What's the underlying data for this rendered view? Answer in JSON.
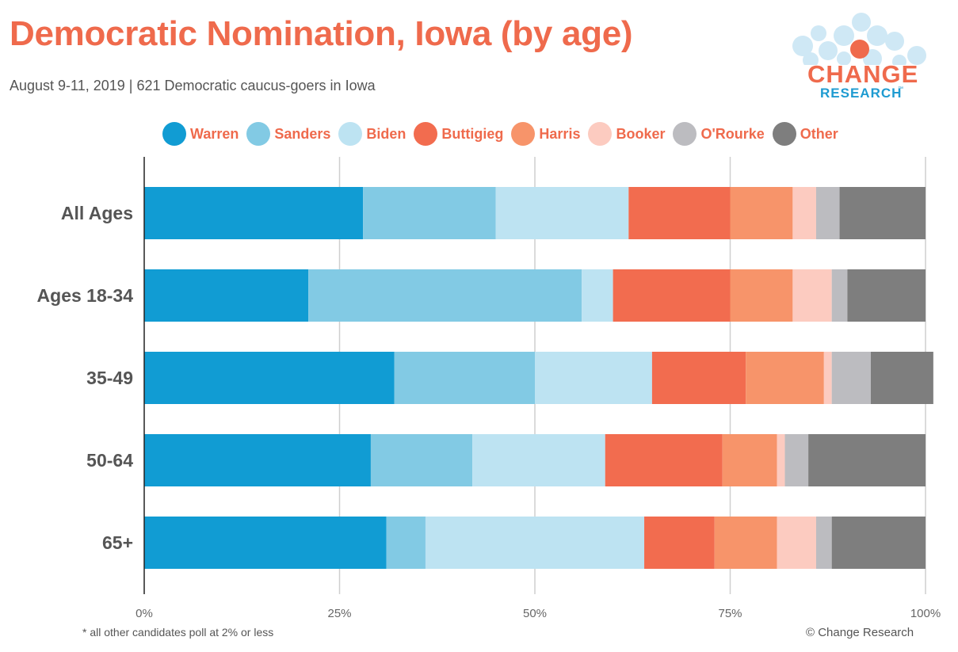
{
  "title": "Democratic Nomination, Iowa (by age)",
  "subtitle": "August 9-11, 2019  | 621 Democratic caucus-goers in Iowa",
  "logo": {
    "line1": "CHANGE",
    "line2": "RESEARCH",
    "tm": "™"
  },
  "footnote": "* all other candidates poll at 2% or less",
  "copyright": "© Change Research",
  "chart_data": {
    "type": "bar",
    "orientation": "horizontal",
    "stacked": true,
    "categories": [
      "All Ages",
      "Ages 18-34",
      "35-49",
      "50-64",
      "65+"
    ],
    "xlim": [
      0,
      100
    ],
    "xticks": [
      "0%",
      "25%",
      "50%",
      "75%",
      "100%"
    ],
    "grid": true,
    "legend_position": "top",
    "series": [
      {
        "name": "Warren",
        "color": "#119cd3",
        "values": [
          28,
          21,
          32,
          29,
          31
        ]
      },
      {
        "name": "Sanders",
        "color": "#82cae4",
        "values": [
          17,
          35,
          18,
          13,
          5
        ]
      },
      {
        "name": "Biden",
        "color": "#bde3f2",
        "values": [
          17,
          4,
          15,
          17,
          28
        ]
      },
      {
        "name": "Buttigieg",
        "color": "#f26c4f",
        "values": [
          13,
          15,
          12,
          15,
          9
        ]
      },
      {
        "name": "Harris",
        "color": "#f7946a",
        "values": [
          8,
          8,
          10,
          7,
          8
        ]
      },
      {
        "name": "Booker",
        "color": "#fccbc0",
        "values": [
          3,
          5,
          1,
          1,
          5
        ]
      },
      {
        "name": "O'Rourke",
        "color": "#bcbcc0",
        "values": [
          3,
          2,
          5,
          3,
          2
        ]
      },
      {
        "name": "Other",
        "color": "#7e7e7e",
        "values": [
          11,
          10,
          8,
          15,
          12
        ]
      }
    ]
  }
}
